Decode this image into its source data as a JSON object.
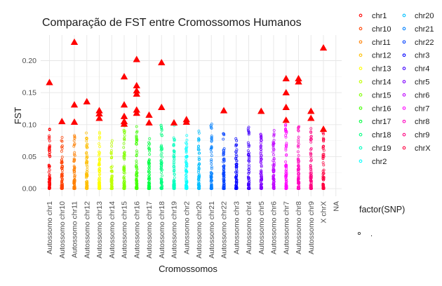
{
  "chart_data": {
    "type": "scatter",
    "title": "Comparação de FST entre Cromossomos Humanos",
    "xlabel": "Cromossomos",
    "ylabel": "FST",
    "ylim": [
      -0.012,
      0.24
    ],
    "y_ticks": [
      0.0,
      0.05,
      0.1,
      0.15,
      0.2
    ],
    "y_tick_labels": [
      "0.00",
      "0.05",
      "0.10",
      "0.15",
      "0.20"
    ],
    "grid": true,
    "categories": [
      "Autossomo chr1",
      "Autossomo chr10",
      "Autossomo chr11",
      "Autossomo chr12",
      "Autossomo chr13",
      "Autossomo chr14",
      "Autossomo chr15",
      "Autossomo chr16",
      "Autossomo chr17",
      "Autossomo chr18",
      "Autossomo chr19",
      "Autossomo chr2",
      "Autossomo chr20",
      "Autossomo chr21",
      "Autossomo chr22",
      "Autossomo chr3",
      "Autossomo chr4",
      "Autossomo chr5",
      "Autossomo chr6",
      "Autossomo chr7",
      "Autossomo chr8",
      "Autossomo chr9",
      "X chrX",
      "NA"
    ],
    "category_colors": [
      "#ff0000",
      "#ff4000",
      "#ff8000",
      "#ffbf00",
      "#ffff00",
      "#bfff00",
      "#80ff00",
      "#40ff00",
      "#00ff40",
      "#00ff80",
      "#00ffbf",
      "#00ffff",
      "#00bfff",
      "#0080ff",
      "#0040ff",
      "#0000ff",
      "#4000ff",
      "#8000ff",
      "#bf00ff",
      "#ff00ff",
      "#ff00bf",
      "#ff0080",
      "#ff0040",
      null
    ],
    "point_max": [
      0.093,
      0.08,
      0.083,
      0.087,
      0.088,
      0.075,
      0.098,
      0.097,
      0.078,
      0.099,
      0.099,
      0.083,
      0.09,
      0.101,
      0.086,
      0.078,
      0.096,
      0.085,
      0.091,
      0.1,
      0.097,
      0.094,
      0.088,
      null
    ],
    "outliers": [
      [
        0.166
      ],
      [
        0.105
      ],
      [
        0.229,
        0.131,
        0.104
      ],
      [
        0.136
      ],
      [
        0.122,
        0.117,
        0.11
      ],
      [],
      [
        0.175,
        0.131,
        0.113,
        0.105,
        0.101
      ],
      [
        0.202,
        0.161,
        0.153,
        0.148,
        0.123,
        0.118
      ],
      [
        0.115,
        0.103
      ],
      [
        0.197,
        0.127
      ],
      [
        0.103
      ],
      [
        0.108,
        0.104
      ],
      [],
      [],
      [
        0.122
      ],
      [],
      [],
      [
        0.121
      ],
      [],
      [
        0.172,
        0.15,
        0.127,
        0.107
      ],
      [
        0.172,
        0.167
      ],
      [
        0.121,
        0.11
      ],
      [
        0.22,
        0.093
      ],
      []
    ],
    "outlier_color": "#ff0000",
    "legend": {
      "title": "factor(SNP)",
      "col1": [
        "chr1",
        "chr10",
        "chr11",
        "chr12",
        "chr13",
        "chr14",
        "chr15",
        "chr16",
        "chr17",
        "chr18",
        "chr19",
        "chr2"
      ],
      "col1_colors": [
        "#ff0000",
        "#ff4000",
        "#ff8000",
        "#ffbf00",
        "#ffff00",
        "#bfff00",
        "#80ff00",
        "#40ff00",
        "#00ff40",
        "#00ff80",
        "#00ffbf",
        "#00ffff"
      ],
      "col2": [
        "chr20",
        "chr21",
        "chr22",
        "chr3",
        "chr4",
        "chr5",
        "chr6",
        "chr7",
        "chr8",
        "chr9",
        "chrX"
      ],
      "col2_colors": [
        "#00bfff",
        "#0080ff",
        "#0040ff",
        "#0000ff",
        "#4000ff",
        "#8000ff",
        "#bf00ff",
        "#ff00ff",
        "#ff00bf",
        "#ff0080",
        "#ff0040"
      ],
      "factor_label": "."
    }
  }
}
